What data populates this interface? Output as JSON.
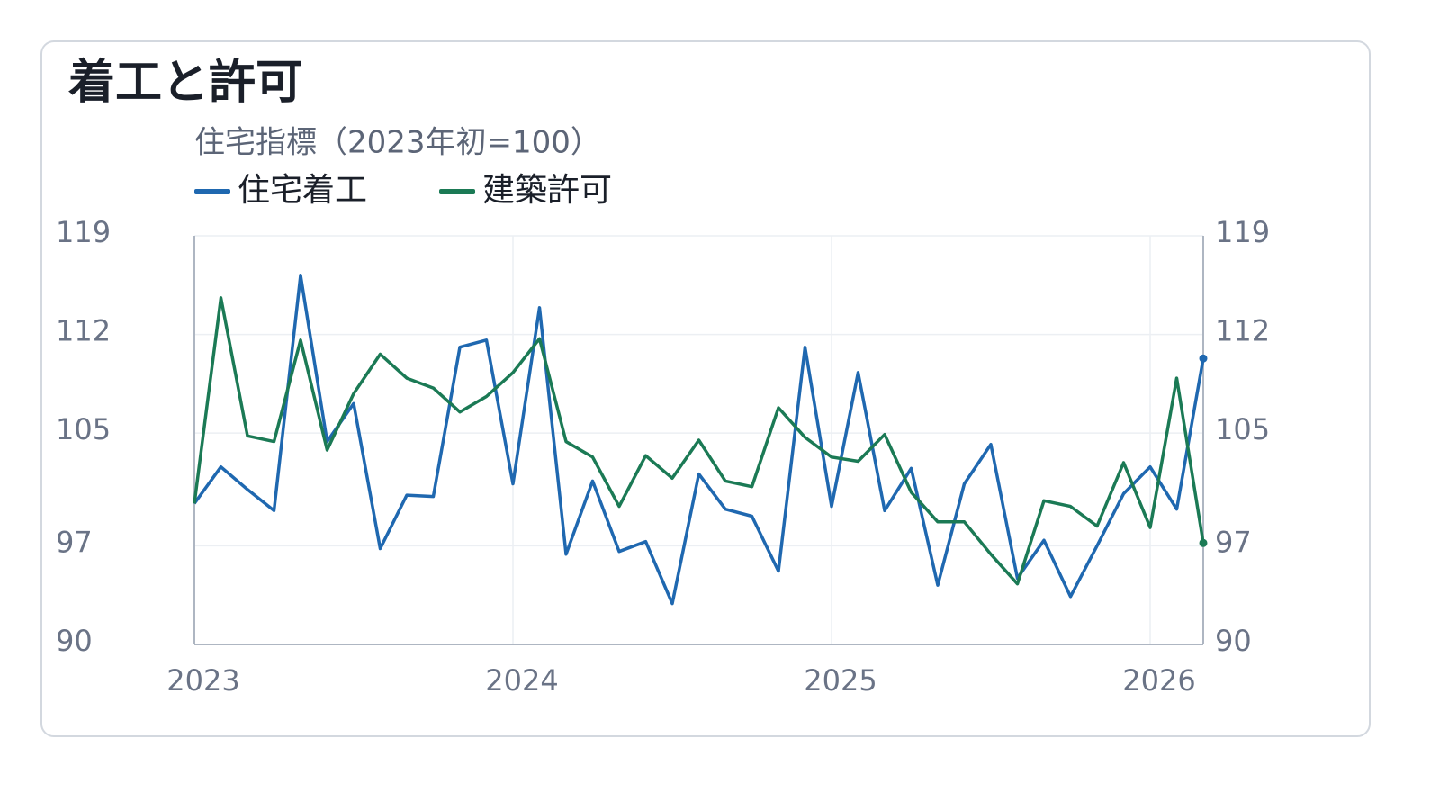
{
  "chart_data": {
    "type": "line",
    "title": "着工と許可",
    "subtitle": "住宅指標（2023年初=100）",
    "x": [
      "2023-01",
      "2023-02",
      "2023-03",
      "2023-04",
      "2023-05",
      "2023-06",
      "2023-07",
      "2023-08",
      "2023-09",
      "2023-10",
      "2023-11",
      "2023-12",
      "2024-01",
      "2024-02",
      "2024-03",
      "2024-04",
      "2024-05",
      "2024-06",
      "2024-07",
      "2024-08",
      "2024-09",
      "2024-10",
      "2024-11",
      "2024-12",
      "2025-01",
      "2025-02",
      "2025-03",
      "2025-04",
      "2025-05",
      "2025-06",
      "2025-07",
      "2025-08",
      "2025-09",
      "2025-10",
      "2025-11",
      "2025-12",
      "2026-01",
      "2026-02",
      "2026-03"
    ],
    "series": [
      {
        "name": "住宅着工",
        "color": "#1f68b0",
        "values": [
          100,
          102.6,
          101,
          99.5,
          116.2,
          104.4,
          107.1,
          96.8,
          100.6,
          100.5,
          111.1,
          111.6,
          101.4,
          113.9,
          96.4,
          101.6,
          96.6,
          97.3,
          92.9,
          102.1,
          99.6,
          99.1,
          95.2,
          111.1,
          99.8,
          109.3,
          99.5,
          102.5,
          94.2,
          101.4,
          104.2,
          94.7,
          97.4,
          93.4,
          97,
          100.7,
          102.6,
          99.6,
          110.3
        ]
      },
      {
        "name": "建築許可",
        "color": "#1b7a55",
        "values": [
          100,
          114.6,
          104.8,
          104.4,
          111.6,
          103.8,
          107.8,
          110.6,
          108.9,
          108.2,
          106.5,
          107.6,
          109.3,
          111.7,
          104.4,
          103.3,
          99.8,
          103.4,
          101.8,
          104.5,
          101.6,
          101.2,
          106.8,
          104.7,
          103.3,
          103,
          104.9,
          100.8,
          98.7,
          98.7,
          96.4,
          94.3,
          100.2,
          99.8,
          98.4,
          102.9,
          98.3,
          108.9,
          97.2
        ]
      }
    ],
    "xlim": [
      "2023-01",
      "2026-03"
    ],
    "xticks": [
      "2023",
      "2024",
      "2025",
      "2026"
    ],
    "ylim": [
      90,
      119
    ],
    "yticks": [
      90,
      97,
      105,
      112,
      119
    ],
    "grid": true
  }
}
